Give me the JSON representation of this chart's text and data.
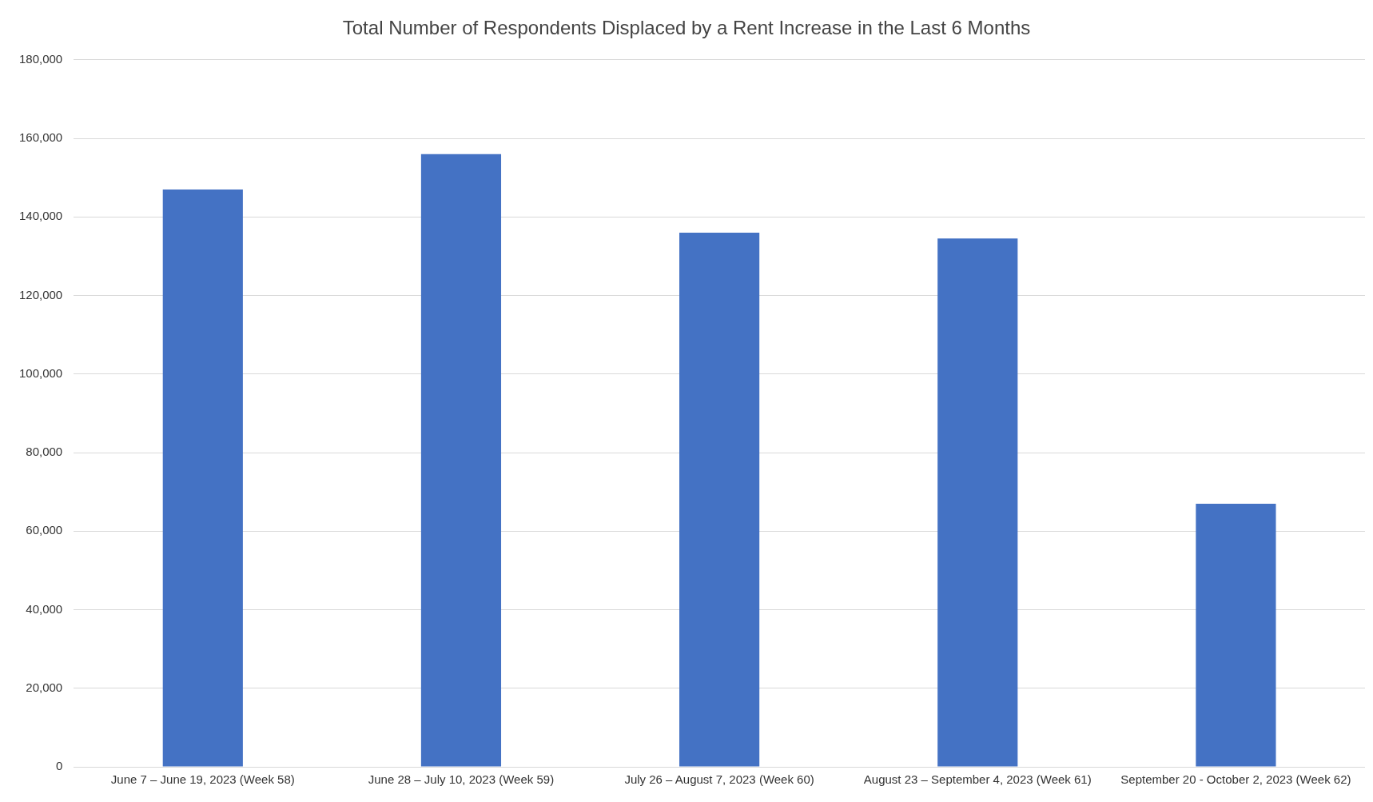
{
  "chart_data": {
    "type": "bar",
    "title": "Total Number of Respondents Displaced by a Rent Increase in the Last 6 Months",
    "categories": [
      "June 7 – June 19, 2023 (Week 58)",
      "June 28 – July 10, 2023 (Week 59)",
      "July 26 – August 7, 2023 (Week 60)",
      "August 23 – September 4, 2023 (Week 61)",
      "September 20 - October 2, 2023 (Week 62)"
    ],
    "values": [
      147000,
      156000,
      136000,
      134500,
      67000
    ],
    "color": "#4472c4",
    "ylim": [
      0,
      180000
    ],
    "yticks": [
      0,
      {
        "value": 20000,
        "label": "20,000"
      },
      {
        "value": 40000,
        "label": "40,000"
      },
      {
        "value": 60000,
        "label": "60,000"
      },
      {
        "value": 80000,
        "label": "80,000"
      },
      {
        "value": 100000,
        "label": "100,000"
      },
      {
        "value": 120000,
        "label": "120,000"
      },
      {
        "value": 140000,
        "label": "140,000"
      },
      {
        "value": 160000,
        "label": "160,000"
      },
      {
        "value": 180000,
        "label": "180,000"
      }
    ],
    "grid": "y",
    "legend": false
  }
}
